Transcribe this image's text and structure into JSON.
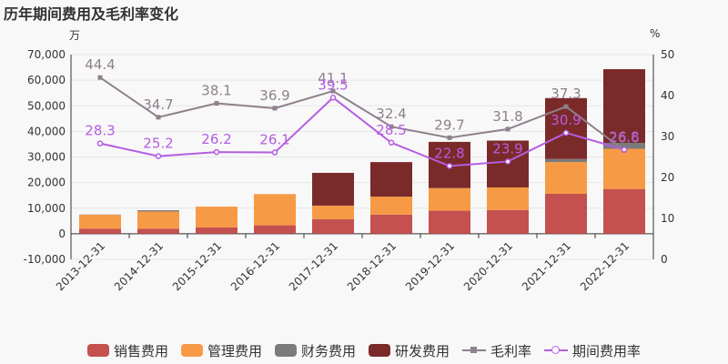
{
  "title": "历年期间费用及毛利率变化",
  "left_unit": "万",
  "right_unit": "%",
  "chart_data": {
    "type": "bar",
    "categories": [
      "2013-12-31",
      "2014-12-31",
      "2015-12-31",
      "2016-12-31",
      "2017-12-31",
      "2018-12-31",
      "2019-12-31",
      "2020-12-31",
      "2021-12-31",
      "2022-12-31"
    ],
    "y_left": {
      "min": -10000,
      "max": 70000,
      "step": 10000,
      "ticks": [
        "-10,000",
        "0",
        "10,000",
        "20,000",
        "30,000",
        "40,000",
        "50,000",
        "60,000",
        "70,000"
      ]
    },
    "y_right": {
      "min": 0,
      "max": 50,
      "step": 10,
      "ticks": [
        "0",
        "10",
        "20",
        "30",
        "40",
        "50"
      ]
    },
    "bar_series": [
      {
        "name": "销售费用",
        "color": "#c4504f",
        "values": [
          2000,
          2000,
          2500,
          3300,
          5700,
          7500,
          9000,
          9300,
          15600,
          17500
        ]
      },
      {
        "name": "管理费用",
        "color": "#f79a45",
        "values": [
          5400,
          6700,
          8100,
          12200,
          5300,
          7000,
          8800,
          8800,
          12400,
          15700
        ]
      },
      {
        "name": "财务费用",
        "color": "#7b7b7b",
        "values": [
          100,
          500,
          0,
          0,
          0,
          0,
          100,
          0,
          1200,
          2300
        ]
      },
      {
        "name": "研发费用",
        "color": "#7b2a2a",
        "values": [
          0,
          0,
          0,
          0,
          12800,
          13500,
          18000,
          18300,
          23800,
          28800
        ]
      }
    ],
    "line_series": [
      {
        "name": "毛利率",
        "color": "#8e808c",
        "marker": "square",
        "values": [
          44.4,
          34.7,
          38.1,
          36.9,
          41.1,
          32.4,
          29.7,
          31.8,
          37.3,
          26.6
        ]
      },
      {
        "name": "期间费用率",
        "color": "#b45ee0",
        "marker": "circle",
        "values": [
          28.3,
          25.2,
          26.2,
          26.1,
          39.5,
          28.5,
          22.8,
          23.9,
          30.9,
          26.8
        ]
      }
    ]
  }
}
